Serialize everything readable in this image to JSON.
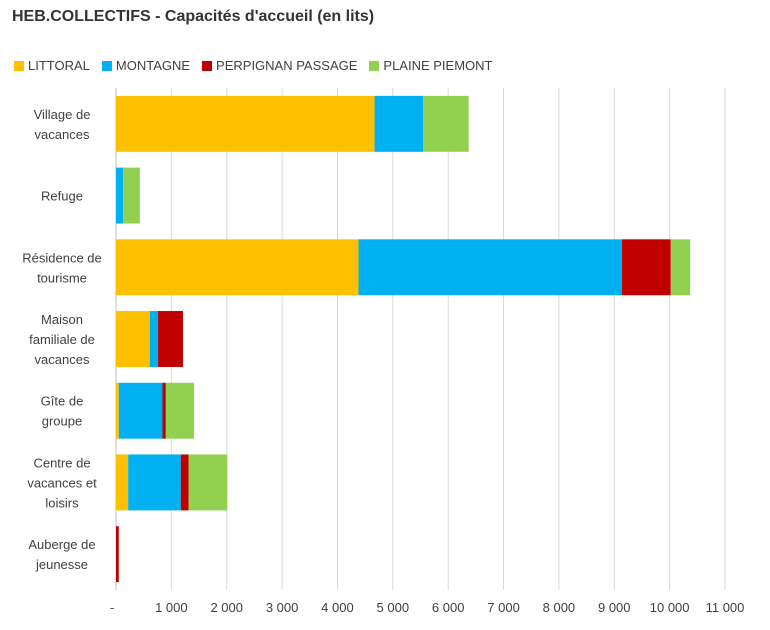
{
  "chart_data": {
    "type": "bar",
    "orientation": "horizontal",
    "stacked": true,
    "title": "HEB.COLLECTIFS - Capacités d'accueil (en lits)",
    "legend_position": "top-left",
    "grid": true,
    "xlim": [
      0,
      11000
    ],
    "xticks": [
      0,
      1000,
      2000,
      3000,
      4000,
      5000,
      6000,
      7000,
      8000,
      9000,
      10000,
      11000
    ],
    "xtick_labels": [
      "-",
      "1 000",
      "2 000",
      "3 000",
      "4 000",
      "5 000",
      "6 000",
      "7 000",
      "8 000",
      "9 000",
      "10 000",
      "11 000"
    ],
    "categories": [
      [
        "Village de",
        "vacances"
      ],
      [
        "Refuge"
      ],
      [
        "Résidence de",
        "tourisme"
      ],
      [
        "Maison",
        "familiale de",
        "vacances"
      ],
      [
        "Gîte de",
        "groupe"
      ],
      [
        "Centre de",
        "vacances et",
        "loisirs"
      ],
      [
        "Auberge de",
        "jeunesse"
      ]
    ],
    "series": [
      {
        "name": "LITTORAL",
        "color": "#FFC000",
        "values": [
          4670,
          0,
          4380,
          610,
          50,
          220,
          0
        ]
      },
      {
        "name": "MONTAGNE",
        "color": "#00B0F0",
        "values": [
          880,
          130,
          4760,
          150,
          790,
          950,
          0
        ]
      },
      {
        "name": "PERPIGNAN PASSAGE",
        "color": "#C00000",
        "values": [
          0,
          0,
          880,
          450,
          60,
          140,
          50
        ]
      },
      {
        "name": "PLAINE PIEMONT",
        "color": "#92D050",
        "values": [
          820,
          300,
          350,
          0,
          510,
          700,
          0
        ]
      }
    ]
  }
}
